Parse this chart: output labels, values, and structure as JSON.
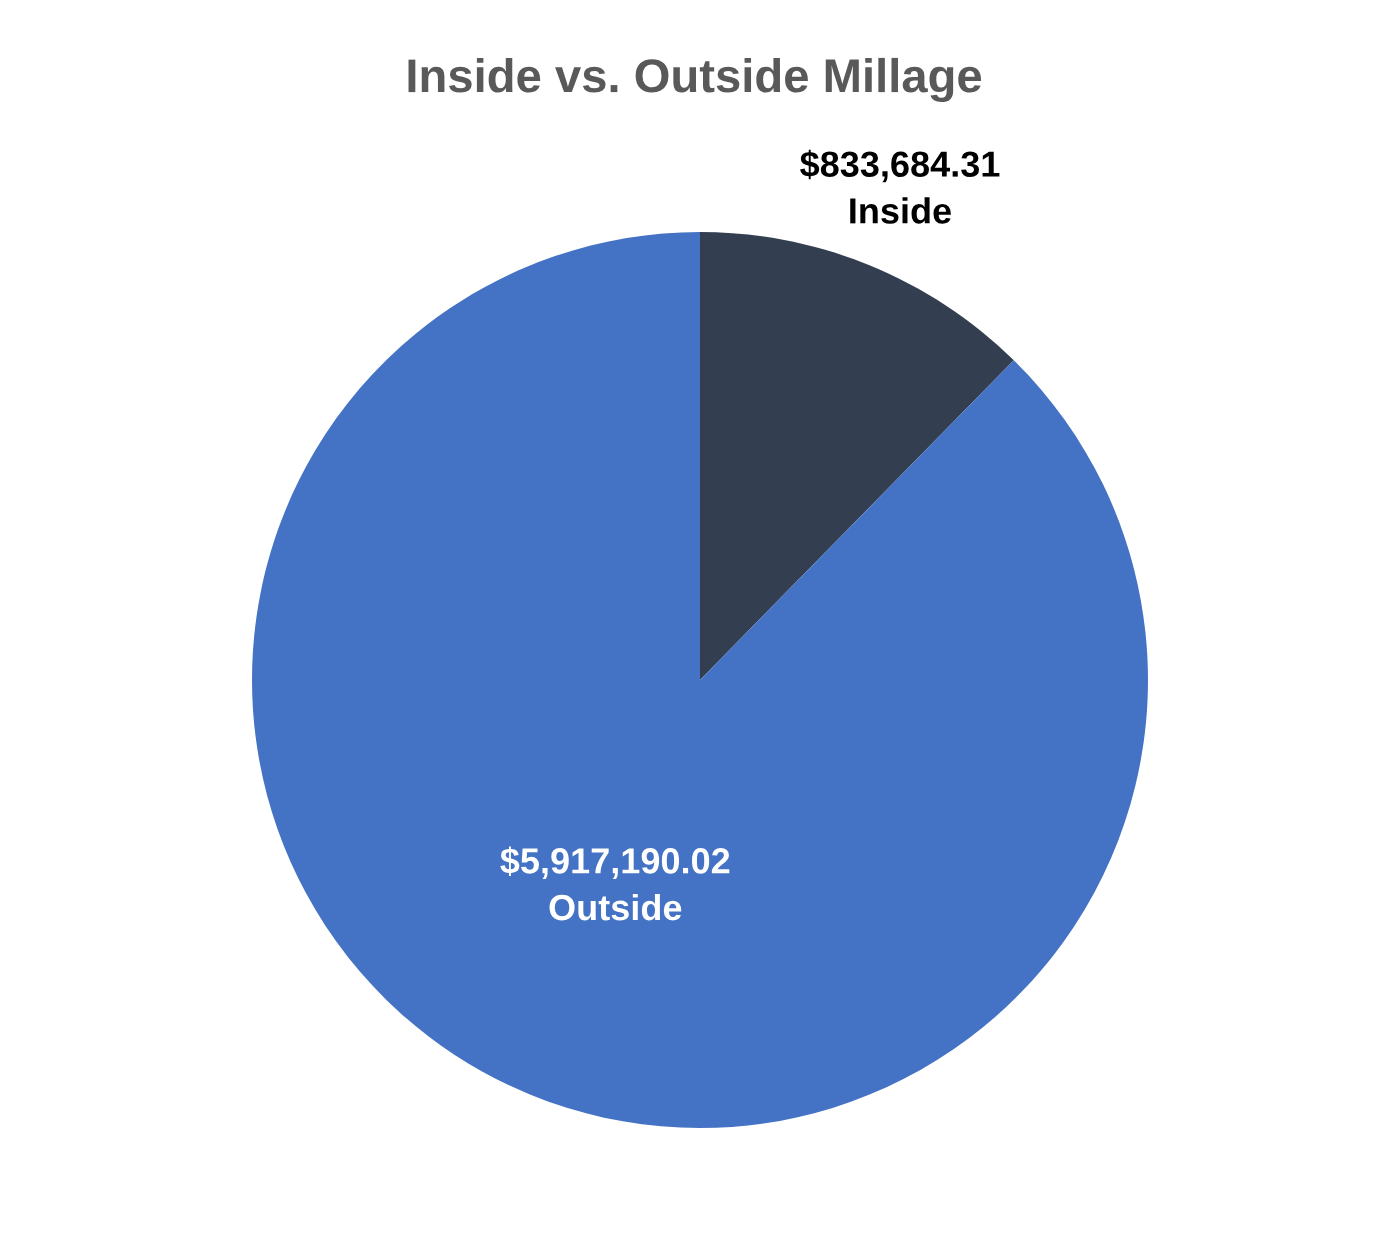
{
  "chart_data": {
    "type": "pie",
    "title": "Inside vs. Outside Millage",
    "categories": [
      "Inside",
      "Outside"
    ],
    "values": [
      833684.31,
      5917190.02
    ],
    "colors": [
      "#333f50",
      "#4472c4"
    ],
    "value_labels": [
      "$833,684.31",
      "$5,917,190.02"
    ],
    "legend": false
  }
}
